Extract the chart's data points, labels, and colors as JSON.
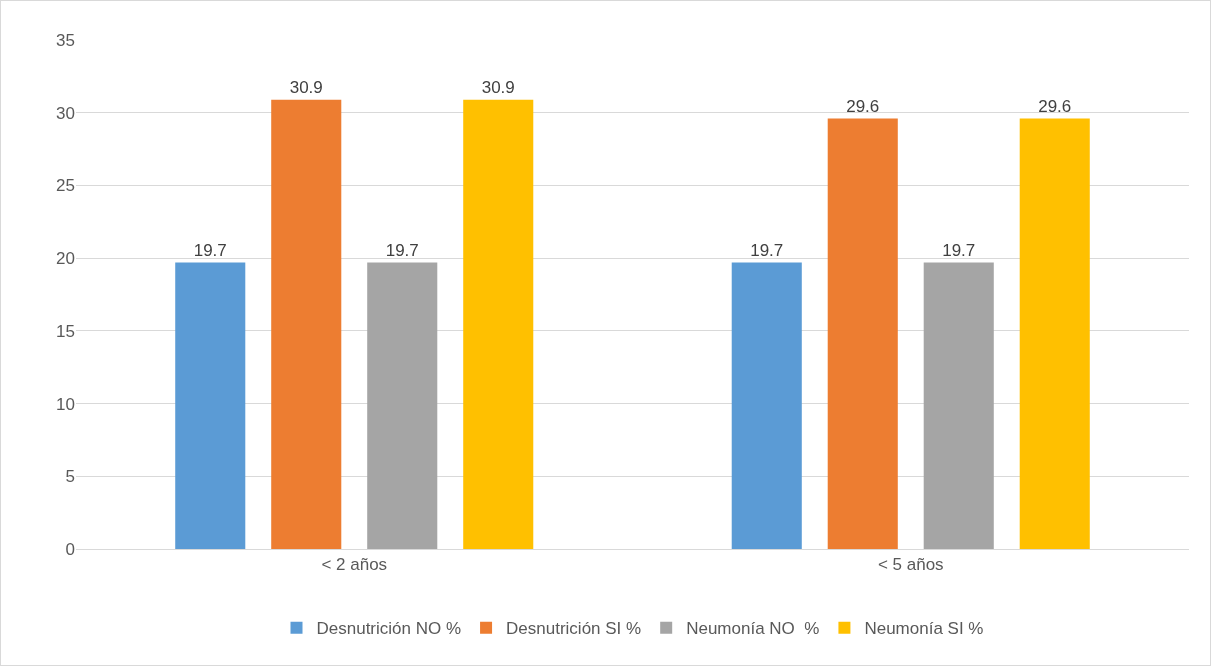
{
  "chart_data": {
    "type": "bar",
    "categories": [
      "< 2 años",
      "< 5 años"
    ],
    "series": [
      {
        "name": "Desnutrición NO %",
        "color": "#5b9bd5",
        "values": [
          19.7,
          19.7
        ]
      },
      {
        "name": "Desnutrición SI %",
        "color": "#ed7d31",
        "values": [
          30.9,
          29.6
        ]
      },
      {
        "name": "Neumonía NO  %",
        "color": "#a5a5a5",
        "values": [
          19.7,
          19.7
        ]
      },
      {
        "name": "Neumonía SI %",
        "color": "#ffc000",
        "values": [
          30.9,
          29.6
        ]
      }
    ],
    "ylim": [
      0,
      35
    ],
    "yticks": [
      0,
      5,
      10,
      15,
      20,
      25,
      30,
      35
    ],
    "grid": "y",
    "legend": "bottom",
    "data_labels": true
  }
}
